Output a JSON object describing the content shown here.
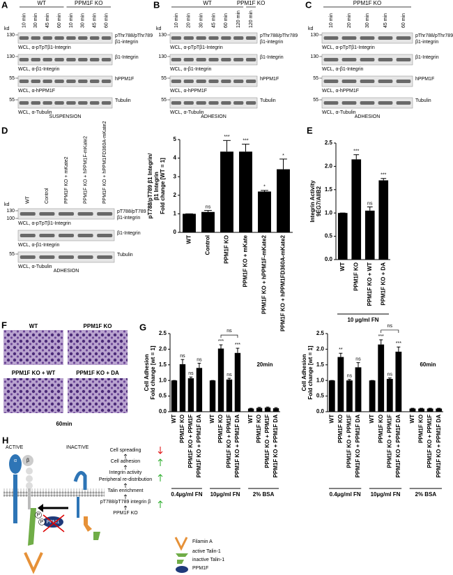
{
  "panels": {
    "A": {
      "letter": "A",
      "groups": [
        {
          "name": "WT",
          "lanes": [
            "10 min",
            "30 min",
            "45 min",
            "60 min"
          ]
        },
        {
          "name": "PPM1F KO",
          "lanes": [
            "10 min",
            "30 min",
            "45 min",
            "60 min"
          ]
        }
      ],
      "kd": "kd",
      "rows": [
        {
          "mw": [
            "130"
          ],
          "label": [
            "pThr788/pThr789",
            "β1-integrin"
          ],
          "caption": "WCL, α-pTpTβ1-Integrin"
        },
        {
          "mw": [
            "130"
          ],
          "label": [
            "β1-Integrin"
          ],
          "caption": "WCL, α-β1-Integrin"
        },
        {
          "mw": [
            "55"
          ],
          "label": [
            "hPPM1F"
          ],
          "caption": "WCL, α-hPPM1F"
        },
        {
          "mw": [
            "55"
          ],
          "label": [
            "Tubulin"
          ],
          "caption": "WCL, α-Tubulin"
        }
      ],
      "footer": "SUSPENSION"
    },
    "B": {
      "letter": "B",
      "groups": [
        {
          "name": "WT",
          "lanes": [
            "10 min",
            "20 min",
            "30 min",
            "45 min",
            "60 min",
            "120 min"
          ]
        },
        {
          "name": "PPM1F KO",
          "lanes": [
            "120 min"
          ]
        }
      ],
      "kd": "kd",
      "rows": [
        {
          "mw": [
            "130"
          ],
          "label": [
            "pThr788/pThr789",
            "β1-integrin"
          ],
          "caption": "WCL, α-pTpTβ1-Integrin"
        },
        {
          "mw": [
            "130"
          ],
          "label": [
            "β1-Integrin"
          ],
          "caption": "WCL, α-β1-Integrin"
        },
        {
          "mw": [
            "55"
          ],
          "label": [
            "hPPM1F"
          ],
          "caption": "WCL, α-hPPM1F"
        },
        {
          "mw": [
            "55"
          ],
          "label": [
            "Tubulin"
          ],
          "caption": "WCL, α-Tubulin"
        }
      ],
      "footer": "ADHESION"
    },
    "C": {
      "letter": "C",
      "groups": [
        {
          "name": "PPM1F KO",
          "lanes": [
            "10 min",
            "20 min",
            "30 min",
            "45 min",
            "60 min"
          ]
        }
      ],
      "kd": "kd",
      "rows": [
        {
          "mw": [
            "130"
          ],
          "label": [
            "pThr788/pThr789",
            "β1-integrin"
          ],
          "caption": "WCL, α-pTpTβ1-Integrin"
        },
        {
          "mw": [
            "130"
          ],
          "label": [
            "β1-Integrin"
          ],
          "caption": "WCL, α-β1-Integrin"
        },
        {
          "mw": [
            "55"
          ],
          "label": [
            "hPPM1F"
          ],
          "caption": "WCL, α-hPPM1F"
        },
        {
          "mw": [
            "55"
          ],
          "label": [
            "Tubulin"
          ],
          "caption": "WCL, α-Tubulin"
        }
      ],
      "footer": "ADHESION"
    },
    "D": {
      "letter": "D",
      "lanes": [
        "WT",
        "Control",
        "PPM1F KO + mKate2",
        "PPM1F KO + hPPM1F-mKate2",
        "PPM1F KO + hPPM1FD360A-mKate2"
      ],
      "kd": "kd",
      "rows": [
        {
          "mw": [
            "130",
            "100"
          ],
          "label": [
            "pT788/pT789",
            "β1-integrin"
          ],
          "caption": "WCL, α-pTpTβ1-Integrin"
        },
        {
          "mw": [],
          "label": [
            "β1-Integrin"
          ],
          "caption": "WCL, α-β1-Integrin"
        },
        {
          "mw": [
            "55"
          ],
          "label": [
            "Tubulin"
          ],
          "caption": "WCL, α-Tubulin"
        }
      ],
      "footer": "ADHESION"
    },
    "F": {
      "letter": "F",
      "images": [
        "WT",
        "PPM1F KO",
        "PPM1F KO + WT",
        "PPM1F KO + DA"
      ],
      "caption": "60min"
    },
    "H": {
      "letter": "H",
      "states": [
        "ACTIVE",
        "INACTIVE"
      ],
      "flow": [
        "Cell spreading",
        "Cell adhesion",
        "Integrin activity",
        "Peripheral re-distribution",
        "Talin enrichment",
        "pT788/pT789 integrin β",
        "PPM1F KO"
      ],
      "molecules": {
        "alpha": "α",
        "beta": "β",
        "ppm1": "PPM1",
        "p": "P"
      },
      "legend": [
        "Filamin A",
        "active Talin-1",
        "inactive Talin-1",
        "PPM1F"
      ]
    }
  },
  "chart_data": [
    {
      "type": "bar",
      "ylabel": [
        "pT788/pT789 β1 Integrin/",
        "β1 Integrin",
        "Fold change [WT = 1]"
      ],
      "ylim": [
        0,
        5
      ],
      "yticks": [
        0,
        1,
        2,
        3,
        4,
        5
      ],
      "color": "#000000",
      "groups": [
        {
          "categories": [
            "WT",
            "Control",
            "PPM1F KO",
            "PPM1F KO + mKate",
            "PPM1F KO + hPPM1F-mKate2",
            "PPM1F KO + hPPM1FD360A-mKate2"
          ],
          "values": [
            1,
            1.1,
            4.35,
            4.35,
            2.2,
            3.4
          ],
          "errors": [
            0,
            0.08,
            0.6,
            0.4,
            0.06,
            0.55
          ],
          "significance": [
            null,
            "ns",
            "***",
            "***",
            "*",
            "*"
          ]
        }
      ]
    },
    {
      "type": "bar",
      "letter": "E",
      "ylabel": [
        "Integrin Activity",
        "9EG7/AIIB2"
      ],
      "ylim": [
        0,
        2.5
      ],
      "yticks": [
        {
          "value": 0,
          "label": "0.0"
        },
        0.5,
        {
          "value": 1,
          "label": "1.0"
        },
        1.5,
        {
          "value": 2,
          "label": "2.0"
        },
        2.5
      ],
      "color": "#000000",
      "groups": [
        {
          "label": "10 µg/ml FN",
          "categories": [
            "WT",
            "PPM1F KO",
            "PPM1F KO + WT",
            "PPM1F KO + DA"
          ],
          "values": [
            1,
            2.15,
            1.05,
            1.7
          ],
          "errors": [
            0,
            0.1,
            0.08,
            0.04
          ],
          "significance": [
            null,
            "***",
            "ns",
            "***"
          ]
        }
      ]
    },
    {
      "type": "bar",
      "letter": "G",
      "annotation": "20min",
      "ylabel": [
        "Cell Adhesion",
        "Fold change [wt = 1]"
      ],
      "ylim": [
        0,
        2.5
      ],
      "yticks": [
        {
          "value": 0,
          "label": "0.0"
        },
        0.5,
        {
          "value": 1,
          "label": "1.0"
        },
        1.5,
        {
          "value": 2,
          "label": "2.0"
        },
        2.5
      ],
      "color": "#000000",
      "groups": [
        {
          "label": "0.4µg/ml FN",
          "categories": [
            "WT",
            "PPM1F KO",
            "PPM1F KO + PPM1F",
            "PPM1F KO + PPM1F DA"
          ],
          "values": [
            1,
            1.52,
            1.07,
            1.4
          ],
          "errors": [
            0,
            0.15,
            0.04,
            0.15
          ],
          "significance": [
            null,
            "ns",
            "ns",
            "ns"
          ]
        },
        {
          "label": "10µg/ml FN",
          "bracket": "ns",
          "categories": [
            "WT",
            "PPM1F KO",
            "PPM1F KO + PPM1F",
            "PPM1F KO + PPM1F DA"
          ],
          "values": [
            1,
            2.02,
            1.03,
            1.88
          ],
          "errors": [
            0,
            0.12,
            0.04,
            0.15
          ],
          "significance": [
            null,
            "***",
            "ns",
            "***"
          ]
        },
        {
          "label": "2% BSA",
          "categories": [
            "WT",
            "PPM1F KO",
            "PPM1F KO + PPM1F",
            "PPM1F KO + PPM1F DA"
          ],
          "values": [
            0.1,
            0.12,
            0.13,
            0.11
          ],
          "errors": [
            0.01,
            0.02,
            0.02,
            0.02
          ],
          "significance": [
            null,
            null,
            null,
            null
          ]
        }
      ]
    },
    {
      "type": "bar",
      "annotation": "60min",
      "ylabel": [
        "Cell Adhesion",
        "Fold change [wt = 1]"
      ],
      "ylim": [
        0,
        2.5
      ],
      "yticks": [
        {
          "value": 0,
          "label": "0.0"
        },
        0.5,
        {
          "value": 1,
          "label": "1.0"
        },
        1.5,
        {
          "value": 2,
          "label": "2.0"
        },
        2.5
      ],
      "color": "#000000",
      "groups": [
        {
          "label": "0.4µg/ml FN",
          "categories": [
            "WT",
            "PPM1F KO",
            "PPM1F KO + PPM1F",
            "PPM1F KO + PPM1F DA"
          ],
          "values": [
            1,
            1.75,
            1.0,
            1.42
          ],
          "errors": [
            0,
            0.12,
            0.03,
            0.15
          ],
          "significance": [
            null,
            "**",
            "ns",
            "ns"
          ]
        },
        {
          "label": "10µg/ml FN",
          "bracket": "ns",
          "categories": [
            "WT",
            "PPM1F KO",
            "PPM1F KO + PPM1F",
            "PPM1F KO + PPM1F DA"
          ],
          "values": [
            1,
            2.15,
            1.05,
            1.92
          ],
          "errors": [
            0,
            0.15,
            0.03,
            0.15
          ],
          "significance": [
            null,
            "***",
            "ns",
            "***"
          ]
        },
        {
          "label": "2% BSA",
          "categories": [
            "WT",
            "PPM1F KO",
            "PPM1F KO + PPM1F",
            "PPM1F KO + PPM1F DA"
          ],
          "values": [
            0.1,
            0.1,
            0.1,
            0.1
          ],
          "errors": [
            0.01,
            0.01,
            0.01,
            0.01
          ],
          "significance": [
            null,
            null,
            null,
            null
          ]
        }
      ]
    }
  ]
}
